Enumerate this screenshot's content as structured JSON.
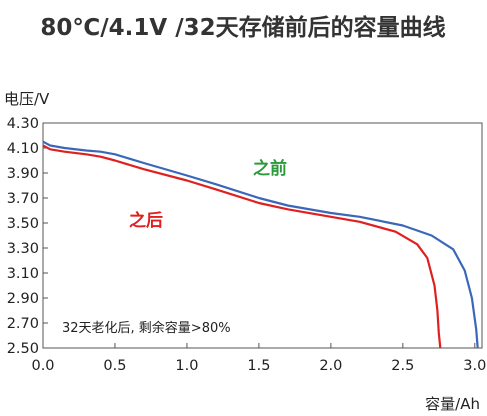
{
  "chart_data": {
    "type": "line",
    "title": "80℃/4.1V /32天存储前后的容量曲线",
    "ylabel": "电压/V",
    "xlabel": "容量/Ah",
    "xlim": [
      0,
      3.05
    ],
    "ylim": [
      2.5,
      4.3
    ],
    "xticks": [
      "0.0",
      "0.5",
      "1.0",
      "1.5",
      "2.0",
      "2.5",
      "3.0"
    ],
    "yticks": [
      "4.30",
      "4.10",
      "3.90",
      "3.70",
      "3.50",
      "3.30",
      "3.10",
      "2.90",
      "2.70",
      "2.50"
    ],
    "grid": false,
    "series": [
      {
        "name": "之前",
        "color": "#3a68b8",
        "points": [
          [
            0.0,
            4.15
          ],
          [
            0.05,
            4.12
          ],
          [
            0.15,
            4.1
          ],
          [
            0.3,
            4.08
          ],
          [
            0.4,
            4.07
          ],
          [
            0.5,
            4.05
          ],
          [
            0.7,
            3.98
          ],
          [
            1.0,
            3.88
          ],
          [
            1.2,
            3.81
          ],
          [
            1.5,
            3.7
          ],
          [
            1.7,
            3.64
          ],
          [
            2.0,
            3.58
          ],
          [
            2.2,
            3.55
          ],
          [
            2.5,
            3.48
          ],
          [
            2.7,
            3.4
          ],
          [
            2.85,
            3.29
          ],
          [
            2.93,
            3.12
          ],
          [
            2.98,
            2.9
          ],
          [
            3.01,
            2.65
          ],
          [
            3.02,
            2.5
          ]
        ]
      },
      {
        "name": "之后",
        "color": "#e02020",
        "points": [
          [
            0.0,
            4.12
          ],
          [
            0.05,
            4.09
          ],
          [
            0.15,
            4.07
          ],
          [
            0.3,
            4.05
          ],
          [
            0.4,
            4.03
          ],
          [
            0.5,
            4.0
          ],
          [
            0.7,
            3.93
          ],
          [
            1.0,
            3.84
          ],
          [
            1.2,
            3.77
          ],
          [
            1.5,
            3.66
          ],
          [
            1.7,
            3.61
          ],
          [
            2.0,
            3.55
          ],
          [
            2.2,
            3.51
          ],
          [
            2.45,
            3.43
          ],
          [
            2.6,
            3.33
          ],
          [
            2.67,
            3.22
          ],
          [
            2.72,
            3.0
          ],
          [
            2.74,
            2.8
          ],
          [
            2.75,
            2.62
          ],
          [
            2.76,
            2.5
          ]
        ]
      }
    ],
    "annotations": [
      {
        "text": "之前",
        "color": "#2a9a3a"
      },
      {
        "text": "之后",
        "color": "#e02020"
      },
      {
        "text": "32天老化后, 剩余容量>80%",
        "color": "#222222"
      }
    ]
  }
}
